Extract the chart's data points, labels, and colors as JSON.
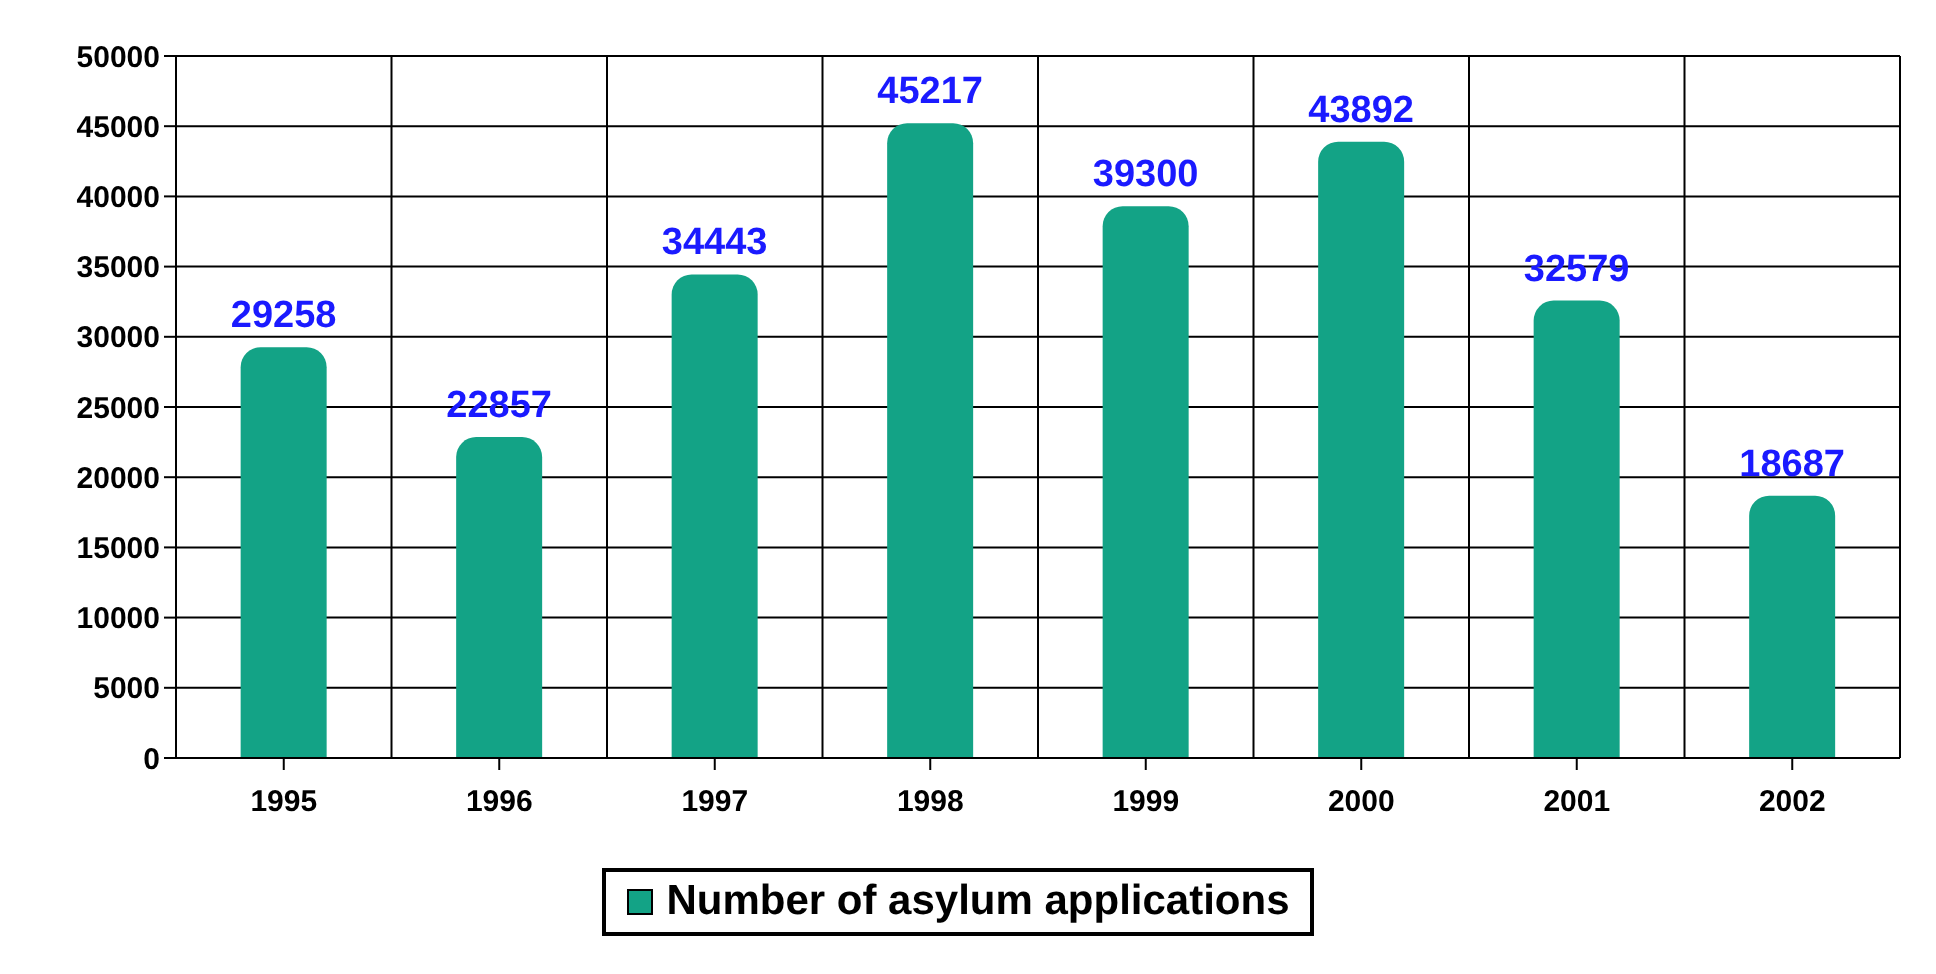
{
  "chart_data": {
    "type": "bar",
    "categories": [
      "1995",
      "1996",
      "1997",
      "1998",
      "1999",
      "2000",
      "2001",
      "2002"
    ],
    "series": [
      {
        "name": "Number of asylum applications",
        "color": "#13a386",
        "values": [
          29258,
          22857,
          34443,
          45217,
          39300,
          43892,
          32579,
          18687
        ]
      }
    ],
    "ylim": [
      0,
      50000
    ],
    "yticks": [
      0,
      5000,
      10000,
      15000,
      20000,
      25000,
      30000,
      35000,
      40000,
      45000,
      50000
    ],
    "grid": true,
    "legend": "bottom",
    "data_labels": true
  }
}
